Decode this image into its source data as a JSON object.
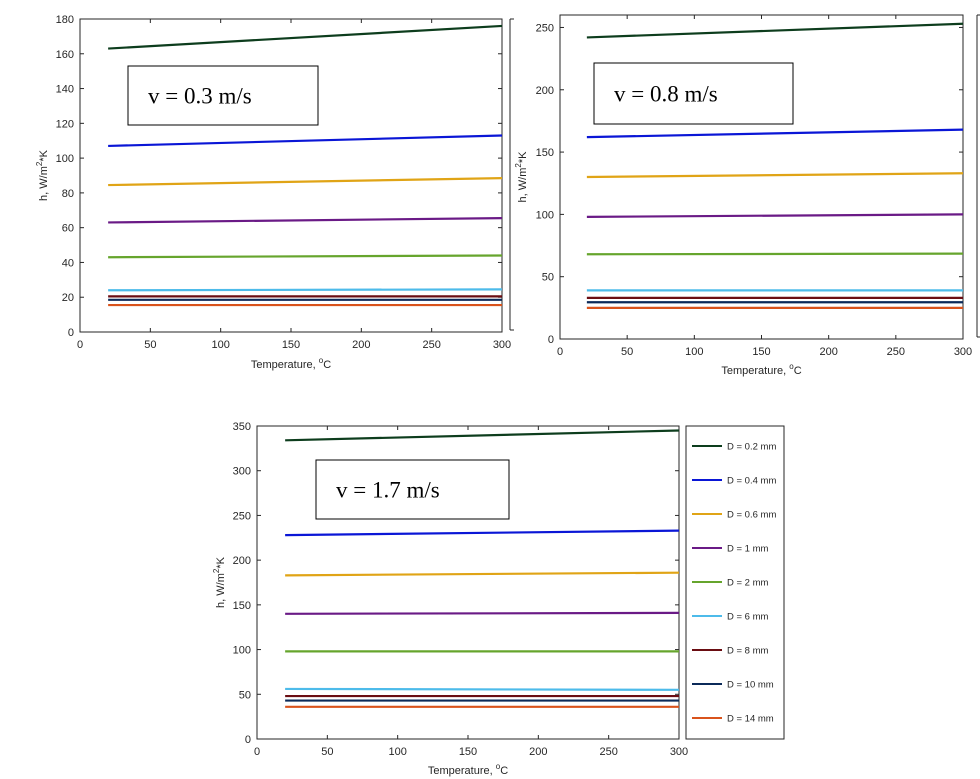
{
  "colors": {
    "D = 0.2 mm": "#0d3d1d",
    "D = 0.4 mm": "#0a16d6",
    "D = 0.6 mm": "#e0a416",
    "D = 1 mm": "#6a1a86",
    "D = 2 mm": "#66a52d",
    "D = 6 mm": "#4dbbea",
    "D = 8 mm": "#6a0d12",
    "D = 10 mm": "#0b2a59",
    "D = 14 mm": "#d9531c"
  },
  "legend": {
    "placement": "right",
    "entries": [
      "D = 0.2 mm",
      "D = 0.4 mm",
      "D = 0.6 mm",
      "D = 1 mm",
      "D = 2 mm",
      "D = 6 mm",
      "D = 8 mm",
      "D = 10 mm",
      "D = 14 mm"
    ]
  },
  "chart_data": [
    {
      "type": "line",
      "annotation": "v = 0.3 m/s",
      "xlabel": "Temperature, ",
      "xlabel_sup": "o",
      "xlabel_unit": "C",
      "ylabel": "h, W/m",
      "ylabel_sup": "2",
      "ylabel_unit": "*K",
      "xlim": [
        0,
        300
      ],
      "ylim": [
        0,
        180
      ],
      "xticks": [
        0,
        50,
        100,
        150,
        200,
        250,
        300
      ],
      "yticks": [
        0,
        20,
        40,
        60,
        80,
        100,
        120,
        140,
        160,
        180
      ],
      "x": [
        20,
        300
      ],
      "series": [
        {
          "name": "D = 0.2 mm",
          "values": [
            163,
            176
          ]
        },
        {
          "name": "D = 0.4 mm",
          "values": [
            107,
            113
          ]
        },
        {
          "name": "D = 0.6 mm",
          "values": [
            84.5,
            88.5
          ]
        },
        {
          "name": "D = 1 mm",
          "values": [
            63,
            65.5
          ]
        },
        {
          "name": "D = 2 mm",
          "values": [
            43,
            44
          ]
        },
        {
          "name": "D = 6 mm",
          "values": [
            24,
            24.5
          ]
        },
        {
          "name": "D = 8 mm",
          "values": [
            20.5,
            20.5
          ]
        },
        {
          "name": "D = 10 mm",
          "values": [
            18.5,
            18.5
          ]
        },
        {
          "name": "D = 14 mm",
          "values": [
            15.5,
            15.5
          ]
        }
      ]
    },
    {
      "type": "line",
      "annotation": "v = 0.8 m/s",
      "xlabel": "Temperature, ",
      "xlabel_sup": "o",
      "xlabel_unit": "C",
      "ylabel": "h, W/m",
      "ylabel_sup": "2",
      "ylabel_unit": "*K",
      "xlim": [
        0,
        300
      ],
      "ylim": [
        0,
        260
      ],
      "xticks": [
        0,
        50,
        100,
        150,
        200,
        250,
        300
      ],
      "yticks": [
        0,
        50,
        100,
        150,
        200,
        250
      ],
      "x": [
        20,
        300
      ],
      "series": [
        {
          "name": "D = 0.2 mm",
          "values": [
            242,
            253
          ]
        },
        {
          "name": "D = 0.4 mm",
          "values": [
            162,
            168
          ]
        },
        {
          "name": "D = 0.6 mm",
          "values": [
            130,
            133
          ]
        },
        {
          "name": "D = 1 mm",
          "values": [
            98,
            100
          ]
        },
        {
          "name": "D = 2 mm",
          "values": [
            68,
            68.5
          ]
        },
        {
          "name": "D = 6 mm",
          "values": [
            39,
            39
          ]
        },
        {
          "name": "D = 8 mm",
          "values": [
            33,
            33
          ]
        },
        {
          "name": "D = 10 mm",
          "values": [
            29.5,
            29.5
          ]
        },
        {
          "name": "D = 14 mm",
          "values": [
            25,
            25
          ]
        }
      ]
    },
    {
      "type": "line",
      "annotation": "v = 1.7 m/s",
      "xlabel": "Temperature, ",
      "xlabel_sup": "o",
      "xlabel_unit": "C",
      "ylabel": "h, W/m",
      "ylabel_sup": "2",
      "ylabel_unit": "*K",
      "xlim": [
        0,
        300
      ],
      "ylim": [
        0,
        350
      ],
      "xticks": [
        0,
        50,
        100,
        150,
        200,
        250,
        300
      ],
      "yticks": [
        0,
        50,
        100,
        150,
        200,
        250,
        300,
        350
      ],
      "x": [
        20,
        300
      ],
      "series": [
        {
          "name": "D = 0.2 mm",
          "values": [
            334,
            345
          ]
        },
        {
          "name": "D = 0.4 mm",
          "values": [
            228,
            233
          ]
        },
        {
          "name": "D = 0.6 mm",
          "values": [
            183,
            186
          ]
        },
        {
          "name": "D = 1 mm",
          "values": [
            140,
            141
          ]
        },
        {
          "name": "D = 2 mm",
          "values": [
            98,
            98
          ]
        },
        {
          "name": "D = 6 mm",
          "values": [
            56,
            55
          ]
        },
        {
          "name": "D = 8 mm",
          "values": [
            48,
            48
          ]
        },
        {
          "name": "D = 10 mm",
          "values": [
            43,
            43
          ]
        },
        {
          "name": "D = 14 mm",
          "values": [
            36,
            36
          ]
        }
      ]
    }
  ]
}
